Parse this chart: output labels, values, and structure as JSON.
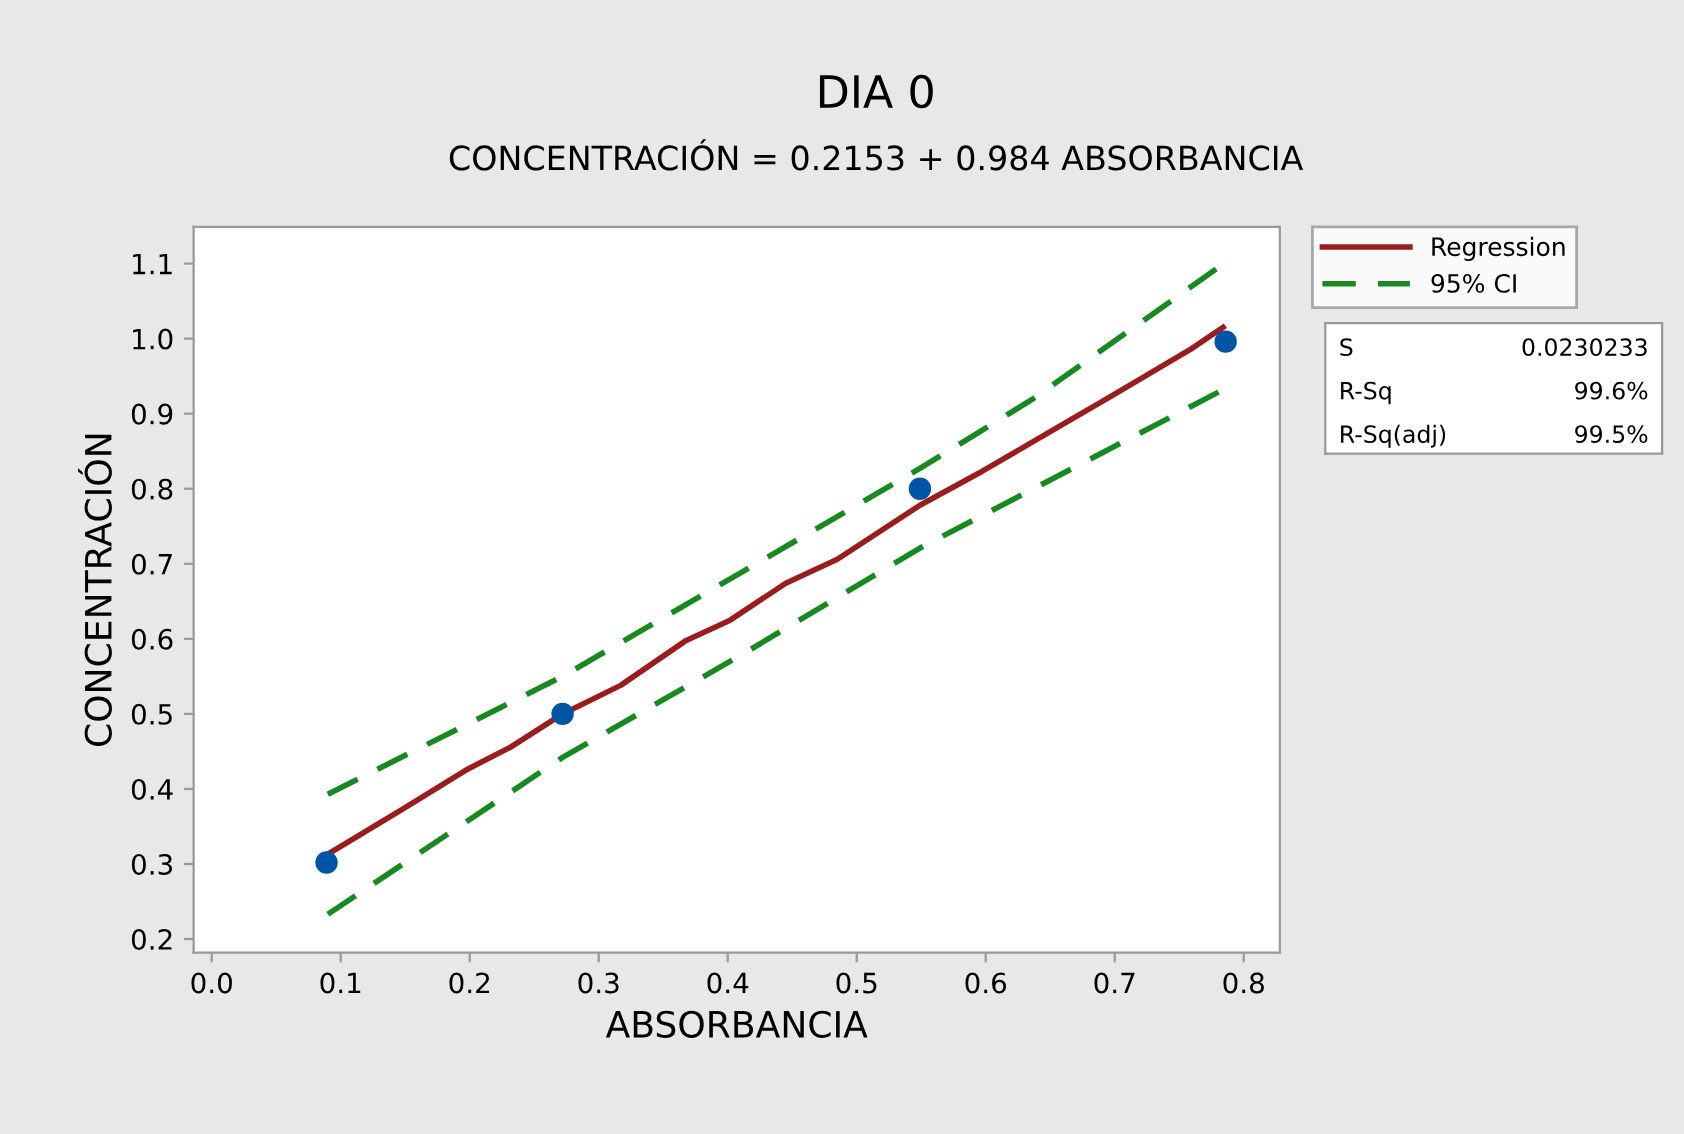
{
  "chart_data": {
    "type": "scatter",
    "title": "DIA 0",
    "subtitle": "CONCENTRACIÓN = 0.2153 + 0.984 ABSORBANCIA",
    "xlabel": "ABSORBANCIA",
    "ylabel": "CONCENTRACIÓN",
    "xlim": [
      -0.014,
      0.828
    ],
    "ylim": [
      0.182,
      1.149
    ],
    "xticks": [
      {
        "value": 0.0,
        "label": "0.0"
      },
      0.1,
      0.2,
      0.3,
      0.4,
      0.5,
      0.6,
      0.7,
      0.8
    ],
    "yticks": [
      0.2,
      0.3,
      0.4,
      0.5,
      0.6,
      0.7,
      0.8,
      0.9,
      {
        "value": 1.0,
        "label": "1.0"
      },
      1.1
    ],
    "grid": false,
    "legend": "right",
    "series": [
      {
        "color": "#0054a6",
        "marker": "circle",
        "x": [
          0.089,
          0.272,
          0.549,
          0.786
        ],
        "values": [
          0.302,
          0.5,
          0.8,
          0.996
        ]
      },
      {
        "type": "line",
        "name": "Regression",
        "color": "#9b1c1c",
        "line_style": "solid",
        "x": [
          0.09,
          0.148,
          0.199,
          0.232,
          0.272,
          0.317,
          0.367,
          0.401,
          0.445,
          0.485,
          0.549,
          0.597,
          0.647,
          0.697,
          0.759,
          0.784
        ],
        "values": [
          0.313,
          0.373,
          0.427,
          0.456,
          0.5,
          0.538,
          0.597,
          0.624,
          0.674,
          0.706,
          0.778,
          0.823,
          0.873,
          0.923,
          0.986,
          1.015
        ]
      },
      {
        "type": "line",
        "name": "95% CI",
        "color": "#16891f",
        "line_style": "dashed",
        "x": [
          0.09,
          0.272,
          0.412,
          0.549,
          0.636,
          0.783
        ],
        "values": [
          0.393,
          0.55,
          0.69,
          0.827,
          0.919,
          1.098
        ]
      },
      {
        "type": "line",
        "color": "#16891f",
        "line_style": "dashed",
        "x": [
          0.09,
          0.272,
          0.412,
          0.549,
          0.783
        ],
        "values": [
          0.233,
          0.442,
          0.58,
          0.721,
          0.931
        ]
      }
    ],
    "annotations": [
      "S",
      "0.0230233",
      "R-Sq",
      "99.6%",
      "R-Sq(adj)",
      "99.5%"
    ]
  }
}
